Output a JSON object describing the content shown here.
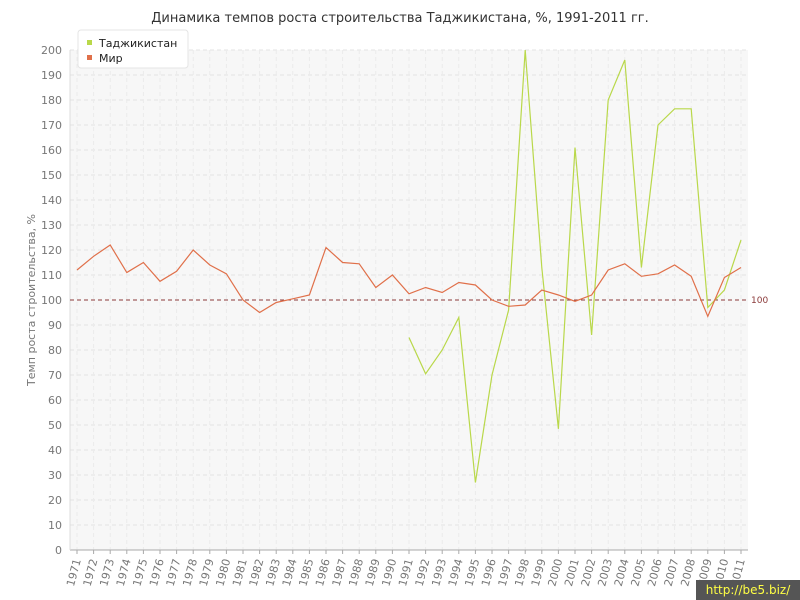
{
  "chart_data": {
    "type": "line",
    "title": "Динамика темпов роста строительства Таджикистана, %, 1991-2011 гг.",
    "ylabel": "Темп роста строительства, %",
    "xlabel": "",
    "ylim": [
      0,
      200
    ],
    "ytick_step": 10,
    "grid": true,
    "legend_position": "top-left",
    "categories": [
      "1971",
      "1972",
      "1973",
      "1974",
      "1975",
      "1976",
      "1977",
      "1978",
      "1979",
      "1980",
      "1981",
      "1982",
      "1983",
      "1984",
      "1985",
      "1986",
      "1987",
      "1988",
      "1989",
      "1990",
      "1991",
      "1992",
      "1993",
      "1994",
      "1995",
      "1996",
      "1997",
      "1998",
      "1999",
      "2000",
      "2001",
      "2002",
      "2003",
      "2004",
      "2005",
      "2006",
      "2007",
      "2008",
      "2009",
      "2010",
      "2011"
    ],
    "series": [
      {
        "name": "Таджикистан",
        "color": "#b9d84a",
        "values": [
          null,
          null,
          null,
          null,
          null,
          null,
          null,
          null,
          null,
          null,
          null,
          null,
          null,
          null,
          null,
          null,
          null,
          null,
          null,
          null,
          85,
          70.5,
          80,
          93,
          27,
          70,
          96,
          200,
          113,
          48.5,
          161,
          86,
          180,
          196,
          113,
          170,
          176.5,
          176.5,
          97,
          104,
          124
        ]
      },
      {
        "name": "Мир",
        "color": "#e0704a",
        "values": [
          112,
          117.5,
          122,
          111,
          115,
          107.5,
          111.5,
          120,
          114,
          110.5,
          100,
          95,
          99,
          100.5,
          102,
          121,
          115,
          114.5,
          105,
          110,
          102.5,
          105,
          103,
          107,
          106,
          100,
          97.5,
          98,
          104,
          102,
          99.5,
          102,
          112,
          114.5,
          109.5,
          110.5,
          114,
          109.5,
          93.5,
          109,
          113
        ]
      }
    ],
    "reference_line": {
      "value": 100,
      "label": "100",
      "color": "#8b3a3a"
    }
  },
  "watermark": "http://be5.biz/"
}
